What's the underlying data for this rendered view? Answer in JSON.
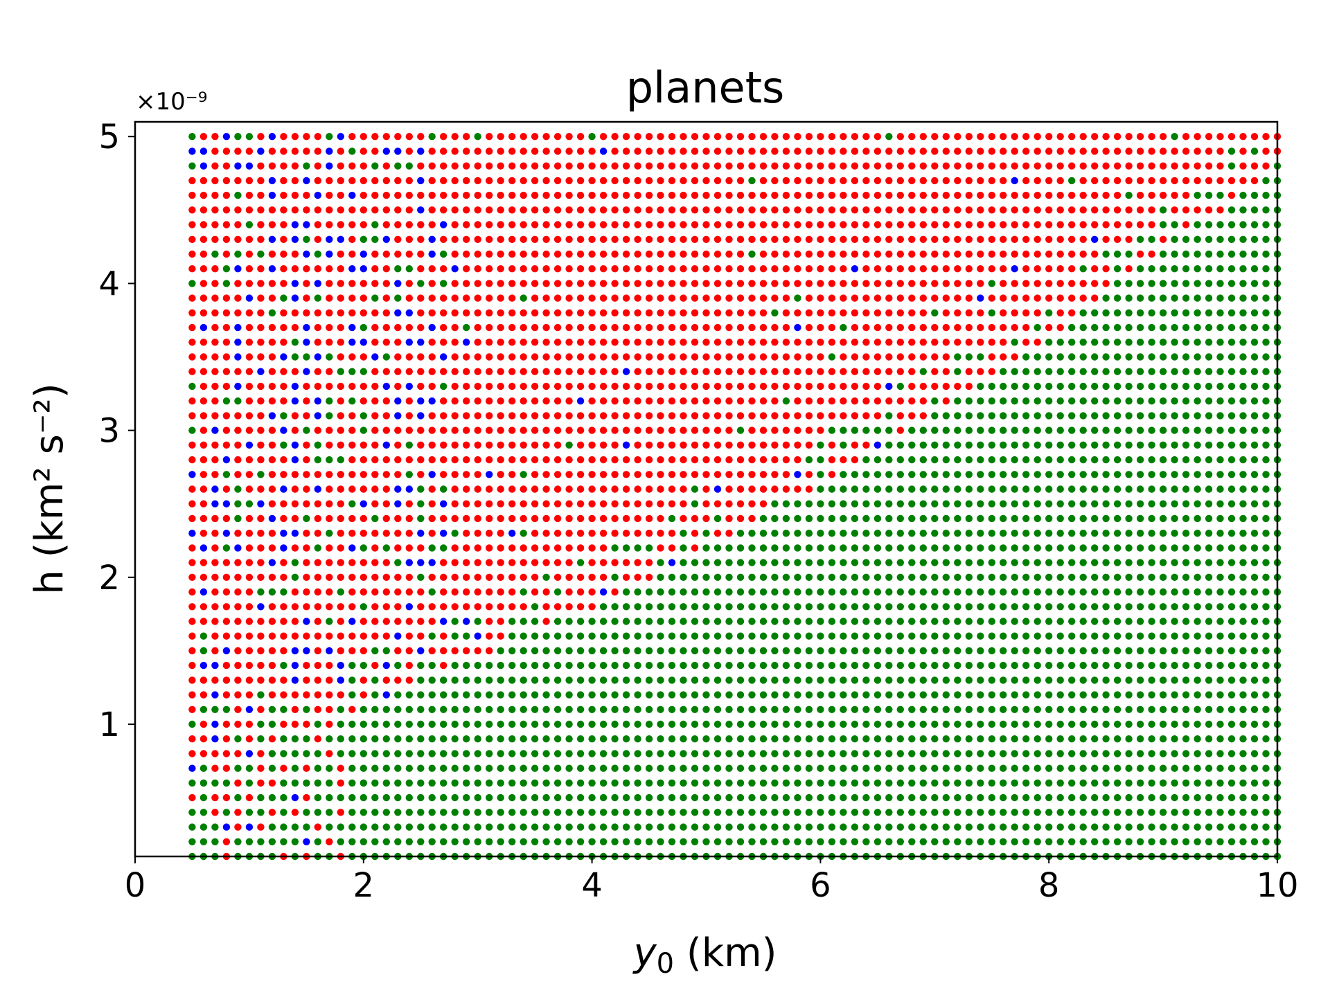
{
  "chart_data": {
    "type": "scatter",
    "title": "planets",
    "xlabel_var": "y",
    "xlabel_sub": "0",
    "xlabel_unit": " (km)",
    "ylabel": "h (km² s⁻²)",
    "y_offset_label": "×10⁻⁹",
    "xlim": [
      0,
      10
    ],
    "ylim": [
      1e-10,
      5.1e-09
    ],
    "xticks": [
      0,
      2,
      4,
      6,
      8,
      10
    ],
    "xtick_labels": [
      "0",
      "2",
      "4",
      "6",
      "8",
      "10"
    ],
    "yticks": [
      1e-09,
      2e-09,
      3e-09,
      4e-09,
      5e-09
    ],
    "ytick_labels": [
      "1",
      "2",
      "3",
      "4",
      "5"
    ],
    "grid": false,
    "x_grid": {
      "start": 0.5,
      "stop": 10.0,
      "step": 0.1
    },
    "y_grid": {
      "start": 1e-10,
      "stop": 5e-09,
      "step": 1e-10
    },
    "series": [
      {
        "color": "#ff0000"
      },
      {
        "color": "#008000"
      },
      {
        "color": "#0000ff"
      }
    ]
  }
}
